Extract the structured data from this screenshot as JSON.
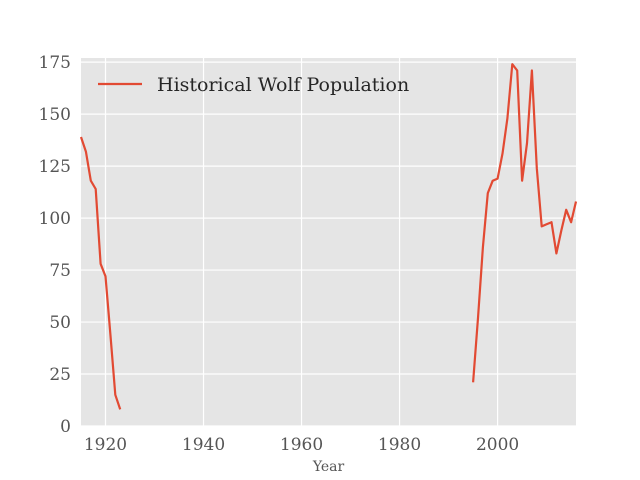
{
  "chart_data": {
    "type": "line",
    "title": "",
    "xlabel": "Year",
    "ylabel": "",
    "xlim": [
      1915,
      2016
    ],
    "ylim": [
      0,
      177
    ],
    "xticks": [
      1920,
      1940,
      1960,
      1980,
      2000
    ],
    "yticks": [
      0,
      25,
      50,
      75,
      100,
      125,
      150,
      175
    ],
    "grid": true,
    "legend_position": "top-left",
    "style": {
      "background": "#e5e5e5",
      "grid_color": "#ffffff",
      "line_color": "#e24a33"
    },
    "series": [
      {
        "name": "Historical Wolf Population",
        "segments": [
          {
            "x": [
              1915,
              1916,
              1917,
              1918,
              1919,
              1920,
              1921,
              1922,
              1923
            ],
            "y": [
              139,
              132,
              118,
              114,
              78,
              72,
              44,
              15,
              8
            ]
          },
          {
            "x": [
              1995,
              1996,
              1997,
              1998,
              1999,
              2000,
              2001,
              2002,
              2003,
              2004,
              2005,
              2006,
              2007,
              2008,
              2009,
              2010,
              2011,
              2012,
              2013,
              2014,
              2015,
              2016
            ],
            "y": [
              21,
              52,
              86,
              112,
              118,
              119,
              131,
              148,
              174,
              171,
              118,
              136,
              171,
              124,
              96,
              97,
              98,
              83,
              94,
              104,
              98,
              108
            ]
          }
        ]
      }
    ]
  }
}
